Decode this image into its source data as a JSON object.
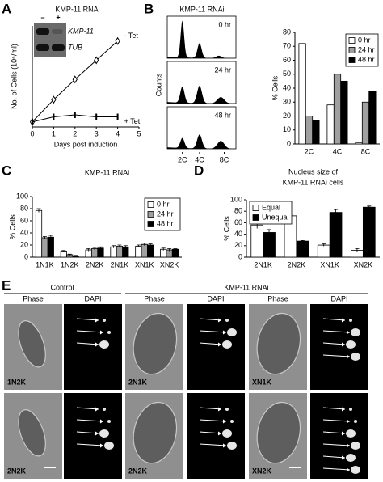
{
  "panel_labels": [
    "A",
    "B",
    "C",
    "D",
    "E"
  ],
  "chart_data": [
    {
      "type": "line",
      "title": "KMP-11 RNAi",
      "x_label": "Days post induction",
      "y_label": "No. of Cells (10⁶/ml)",
      "x": [
        0,
        1,
        2,
        3,
        4
      ],
      "xlim": [
        0,
        5
      ],
      "xticks": [
        0,
        1,
        2,
        3,
        4,
        5
      ],
      "ylim": [
        0,
        100
      ],
      "series": [
        {
          "name": "- Tet",
          "color": "#000000",
          "marker": "diamond",
          "values": [
            5,
            27,
            47,
            66,
            85
          ]
        },
        {
          "name": "+ Tet",
          "color": "#000000",
          "marker": "bar",
          "values": [
            5,
            10,
            12,
            10,
            10
          ]
        }
      ],
      "inset": {
        "lanes": [
          "–",
          "+"
        ],
        "bands": [
          "KMP-11",
          "TUB"
        ]
      }
    },
    {
      "type": "bar",
      "y_label": "% Cells",
      "categories": [
        "2C",
        "4C",
        "8C"
      ],
      "ylim": [
        0,
        80
      ],
      "yticks": [
        0,
        10,
        20,
        30,
        40,
        50,
        60,
        70,
        80
      ],
      "legend": "upper right",
      "series": [
        {
          "name": "0 hr",
          "color": "#ffffff",
          "values": [
            72,
            28,
            1
          ]
        },
        {
          "name": "24 hr",
          "color": "#a0a0a0",
          "values": [
            20,
            50,
            30
          ]
        },
        {
          "name": "48 hr",
          "color": "#000000",
          "values": [
            17,
            45,
            38
          ]
        }
      ]
    },
    {
      "type": "bar",
      "title": [
        "KMP-11 RNAi"
      ],
      "y_label": "% Cells",
      "categories": [
        "1N1K",
        "1N2K",
        "2N2K",
        "2N1K",
        "XN1K",
        "XN2K"
      ],
      "ylim": [
        0,
        100
      ],
      "yticks": [
        0,
        20,
        40,
        60,
        80,
        100
      ],
      "legend": "upper right",
      "series": [
        {
          "name": "0 hr",
          "color": "#ffffff",
          "values": [
            77,
            10,
            12,
            17,
            18,
            13
          ],
          "errors": [
            3,
            1,
            2,
            2,
            2,
            2
          ]
        },
        {
          "name": "24 hr",
          "color": "#a0a0a0",
          "values": [
            32,
            4,
            14,
            18,
            21,
            12
          ],
          "errors": [
            2,
            1,
            2,
            2,
            2,
            2
          ]
        },
        {
          "name": "48 hr",
          "color": "#000000",
          "values": [
            33,
            2,
            15,
            17,
            20,
            13
          ],
          "errors": [
            3,
            1,
            2,
            2,
            2,
            1
          ]
        }
      ]
    },
    {
      "type": "bar",
      "title": [
        "Nucleus size of",
        "KMP-11 RNAi cells"
      ],
      "y_label": "% Cells",
      "categories": [
        "2N1K",
        "2N2K",
        "XN1K",
        "XN2K"
      ],
      "ylim": [
        0,
        100
      ],
      "yticks": [
        0,
        20,
        40,
        60,
        80,
        100
      ],
      "legend": "upper left",
      "series": [
        {
          "name": "Equal",
          "color": "#ffffff",
          "values": [
            56,
            72,
            21,
            12
          ],
          "errors": [
            6,
            3,
            2,
            3
          ]
        },
        {
          "name": "Unequal",
          "color": "#000000",
          "values": [
            43,
            28,
            78,
            87
          ],
          "errors": [
            5,
            1,
            5,
            2
          ]
        }
      ]
    }
  ],
  "flow_cytometry": {
    "title": "KMP-11 RNAi",
    "y_label": "Counts",
    "time_labels": [
      "0 hr",
      "24 hr",
      "48 hr"
    ],
    "x_labels": [
      "2C",
      "4C",
      "8C"
    ]
  },
  "micrographs": {
    "groups": [
      "Control",
      "KMP-11 RNAi"
    ],
    "columns": [
      "Phase",
      "DAPI",
      "Phase",
      "DAPI",
      "Phase",
      "DAPI"
    ],
    "rows": [
      {
        "labels": [
          "1N2K",
          "2N1K",
          "XN1K"
        ],
        "annotations": [
          [
            "K",
            "K",
            "N"
          ],
          [
            "K",
            "N",
            "N"
          ],
          [
            "K",
            "N",
            "N",
            "N"
          ]
        ]
      },
      {
        "labels": [
          "2N2K",
          "2N2K",
          "XN2K"
        ],
        "annotations": [
          [
            "K",
            "K",
            "N",
            "N"
          ],
          [
            "K",
            "K",
            "N",
            "N"
          ],
          [
            "K",
            "K",
            "N",
            "N",
            "N",
            "N"
          ]
        ]
      }
    ]
  }
}
